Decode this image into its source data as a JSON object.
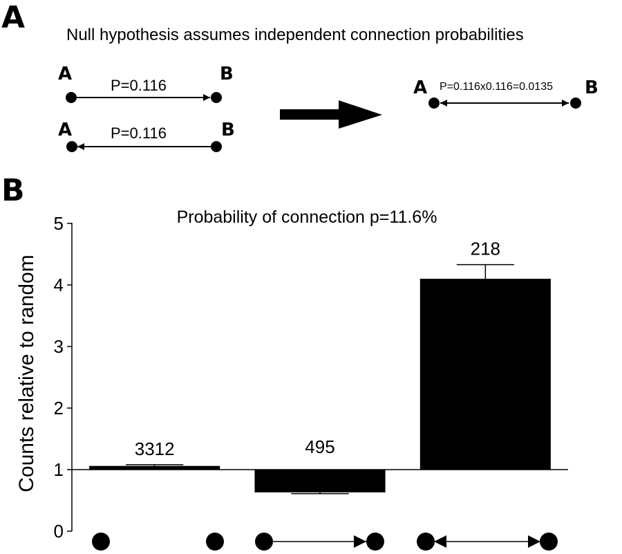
{
  "panel_a": {
    "letter": "A",
    "title": "Null hypothesis assumes independent connection probabilities",
    "pair_top": {
      "from": "A",
      "to": "B",
      "label": "P=0.116"
    },
    "pair_bottom": {
      "from": "A",
      "to": "B",
      "label": "P=0.116"
    },
    "result": {
      "from": "A",
      "to": "B",
      "label": "P=0.116x0.116=0.0135"
    }
  },
  "panel_b": {
    "letter": "B"
  },
  "chart_data": {
    "type": "bar",
    "title": "Probability of connection p=11.6%",
    "ylabel": "Counts relative to random",
    "xlabel": "",
    "ylim": [
      0,
      5
    ],
    "yticks": [
      "0",
      "1",
      "2",
      "3",
      "4",
      "5"
    ],
    "baseline": 1,
    "categories": [
      "unconnected",
      "unidirectional",
      "bidirectional"
    ],
    "values": [
      1.06,
      0.63,
      4.1
    ],
    "error_tops": [
      1.08,
      0.61,
      4.33
    ],
    "data_labels": [
      "3312",
      "495",
      "218"
    ],
    "bar_color": "#000000",
    "grid": false
  }
}
